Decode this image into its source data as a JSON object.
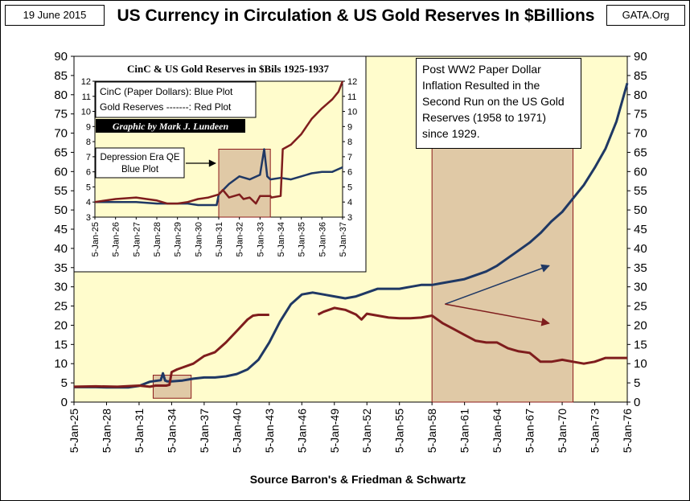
{
  "header": {
    "date": "19 June 2015",
    "title": "US Currency in Circulation & US Gold Reserves In $Billions",
    "site": "GATA.Org",
    "source": "Source Barron's & Friedman & Schwartz"
  },
  "annotation": {
    "text": "Post WW2 Paper Dollar Inflation Resulted in the Second Run on the US Gold Reserves (1958 to 1971) since 1929."
  },
  "chart_data": [
    {
      "type": "line",
      "title": "US Currency in Circulation & US Gold Reserves In $Billions",
      "xlabel": "",
      "ylabel": "",
      "xlim": [
        1925,
        1976
      ],
      "ylim": [
        0,
        90
      ],
      "yticks": [
        0,
        5,
        10,
        15,
        20,
        25,
        30,
        35,
        40,
        45,
        50,
        55,
        60,
        65,
        70,
        75,
        80,
        85,
        90
      ],
      "xtick_labels": [
        "5-Jan-25",
        "5-Jan-28",
        "5-Jan-31",
        "5-Jan-34",
        "5-Jan-37",
        "5-Jan-40",
        "5-Jan-43",
        "5-Jan-46",
        "5-Jan-49",
        "5-Jan-52",
        "5-Jan-55",
        "5-Jan-58",
        "5-Jan-61",
        "5-Jan-64",
        "5-Jan-67",
        "5-Jan-70",
        "5-Jan-73",
        "5-Jan-76"
      ],
      "xtick_years": [
        1925,
        1928,
        1931,
        1934,
        1937,
        1940,
        1943,
        1946,
        1949,
        1952,
        1955,
        1958,
        1961,
        1964,
        1967,
        1970,
        1973,
        1976
      ],
      "grid": false,
      "highlights": [
        {
          "x0": 1932.3,
          "x1": 1935.8,
          "y0": 1,
          "y1": 7
        },
        {
          "x0": 1958,
          "x1": 1971,
          "y0": 0,
          "y1": 70
        }
      ],
      "arrows": [
        {
          "from": [
            1959.2,
            25.5
          ],
          "to": [
            1968.8,
            35.5
          ]
        },
        {
          "from": [
            1959.2,
            25.5
          ],
          "to": [
            1968.8,
            20.5
          ]
        }
      ],
      "series": [
        {
          "color": "#1f3864",
          "x": [
            1925,
            1926,
            1927,
            1928,
            1929,
            1930,
            1931,
            1932,
            1932.5,
            1933,
            1933.2,
            1933.4,
            1933.6,
            1934,
            1935,
            1936,
            1937,
            1938,
            1939,
            1940,
            1941,
            1942,
            1943,
            1944,
            1945,
            1946,
            1947,
            1948,
            1949,
            1950,
            1951,
            1952,
            1953,
            1954,
            1955,
            1956,
            1957,
            1958,
            1959,
            1960,
            1961,
            1962,
            1963,
            1964,
            1965,
            1966,
            1967,
            1968,
            1969,
            1970,
            1971,
            1972,
            1973,
            1974,
            1975,
            1976
          ],
          "y": [
            3.9,
            3.9,
            3.9,
            3.8,
            3.8,
            3.8,
            4.2,
            5.3,
            5.5,
            5.7,
            7.5,
            5.6,
            5.4,
            5.4,
            5.6,
            6.1,
            6.4,
            6.4,
            6.7,
            7.3,
            8.5,
            11.0,
            15.5,
            21.0,
            25.5,
            28.0,
            28.5,
            28.0,
            27.5,
            27.0,
            27.5,
            28.5,
            29.5,
            29.5,
            29.5,
            30.0,
            30.5,
            30.5,
            31.0,
            31.5,
            32.0,
            33.0,
            34.0,
            35.5,
            37.5,
            39.5,
            41.5,
            44.0,
            47.0,
            49.5,
            53.0,
            56.5,
            61.0,
            66.0,
            73.0,
            83.0
          ]
        },
        {
          "color": "#7f1d1d",
          "x": [
            1925,
            1927,
            1929,
            1931,
            1932,
            1932.5,
            1933.5,
            1933.8,
            1934,
            1934.5,
            1935,
            1936,
            1937,
            1938,
            1939,
            1940,
            1941,
            1941.5,
            1942,
            1942.5,
            1943,
            null,
            1947.5,
            1948,
            1949,
            1950,
            1951,
            1951.5,
            1952,
            1953,
            1954,
            1955,
            1956,
            1957,
            1958,
            1959,
            1960,
            1961,
            1962,
            1963,
            1964,
            1965,
            1966,
            1967,
            1968,
            1969,
            1970,
            1971,
            1972,
            1973,
            1974,
            1975,
            1976
          ],
          "y": [
            4.0,
            4.1,
            4.0,
            4.3,
            4.0,
            4.3,
            4.3,
            4.5,
            7.8,
            8.5,
            9.0,
            10.0,
            12.0,
            13.0,
            15.5,
            18.5,
            21.5,
            22.5,
            22.7,
            22.7,
            22.7,
            null,
            22.8,
            23.5,
            24.5,
            24.0,
            22.8,
            21.5,
            23.0,
            22.5,
            22.0,
            21.8,
            21.8,
            22.0,
            22.5,
            20.5,
            19.0,
            17.5,
            16.0,
            15.5,
            15.5,
            14.0,
            13.2,
            12.8,
            10.5,
            10.5,
            11.0,
            10.5,
            10.0,
            10.5,
            11.5,
            11.5,
            11.5
          ]
        }
      ]
    },
    {
      "type": "line",
      "title": "CinC & US Gold Reserves in $Bils 1925-1937",
      "xlim": [
        1925,
        1937
      ],
      "ylim": [
        3,
        12
      ],
      "yticks": [
        3,
        4,
        5,
        6,
        7,
        8,
        9,
        10,
        11,
        12
      ],
      "xtick_labels": [
        "5-Jan-25",
        "5-Jan-26",
        "5-Jan-27",
        "5-Jan-28",
        "5-Jan-29",
        "5-Jan-30",
        "5-Jan-31",
        "5-Jan-32",
        "5-Jan-33",
        "5-Jan-34",
        "5-Jan-35",
        "5-Jan-36",
        "5-Jan-37"
      ],
      "xtick_years": [
        1925,
        1926,
        1927,
        1928,
        1929,
        1930,
        1931,
        1932,
        1933,
        1934,
        1935,
        1936,
        1937
      ],
      "legend": [
        "CinC (Paper Dollars):  Blue Plot",
        "Gold Reserves -------:  Red Plot"
      ],
      "credit": "Graphic by Mark J. Lundeen",
      "callout": "Depression Era QE Blue Plot",
      "highlights": [
        {
          "x0": 1931,
          "x1": 1933.5,
          "y0": 3,
          "y1": 7.5
        }
      ],
      "series": [
        {
          "color": "#1f3864",
          "x": [
            1925,
            1926,
            1927,
            1928,
            1929,
            1929.5,
            1930,
            1930.9,
            1931,
            1931.5,
            1932,
            1932.5,
            1933,
            1933.2,
            1933.35,
            1933.5,
            1934,
            1934.5,
            1935,
            1935.5,
            1936,
            1936.5,
            1937
          ],
          "y": [
            4.0,
            4.0,
            4.0,
            3.9,
            3.9,
            3.9,
            3.8,
            3.8,
            4.5,
            5.2,
            5.7,
            5.5,
            5.8,
            7.5,
            5.7,
            5.5,
            5.6,
            5.5,
            5.7,
            5.9,
            6.0,
            6.0,
            6.3
          ]
        },
        {
          "color": "#7f1d1d",
          "x": [
            1925,
            1926,
            1927,
            1927.5,
            1928,
            1928.5,
            1929,
            1929.5,
            1930,
            1930.5,
            1931,
            1931.2,
            1931.5,
            1932,
            1932.2,
            1932.5,
            1932.8,
            1933,
            1933.5,
            1933.55,
            1934,
            1934.1,
            1934.5,
            1935,
            1935.5,
            1936,
            1936.5,
            1936.8,
            1937
          ],
          "y": [
            4.0,
            4.2,
            4.3,
            4.2,
            4.1,
            3.9,
            3.9,
            4.0,
            4.2,
            4.3,
            4.5,
            4.8,
            4.3,
            4.5,
            4.2,
            4.3,
            3.9,
            4.4,
            4.4,
            4.3,
            4.4,
            7.5,
            7.8,
            8.5,
            9.5,
            10.2,
            10.8,
            11.3,
            12.0
          ]
        }
      ]
    }
  ]
}
